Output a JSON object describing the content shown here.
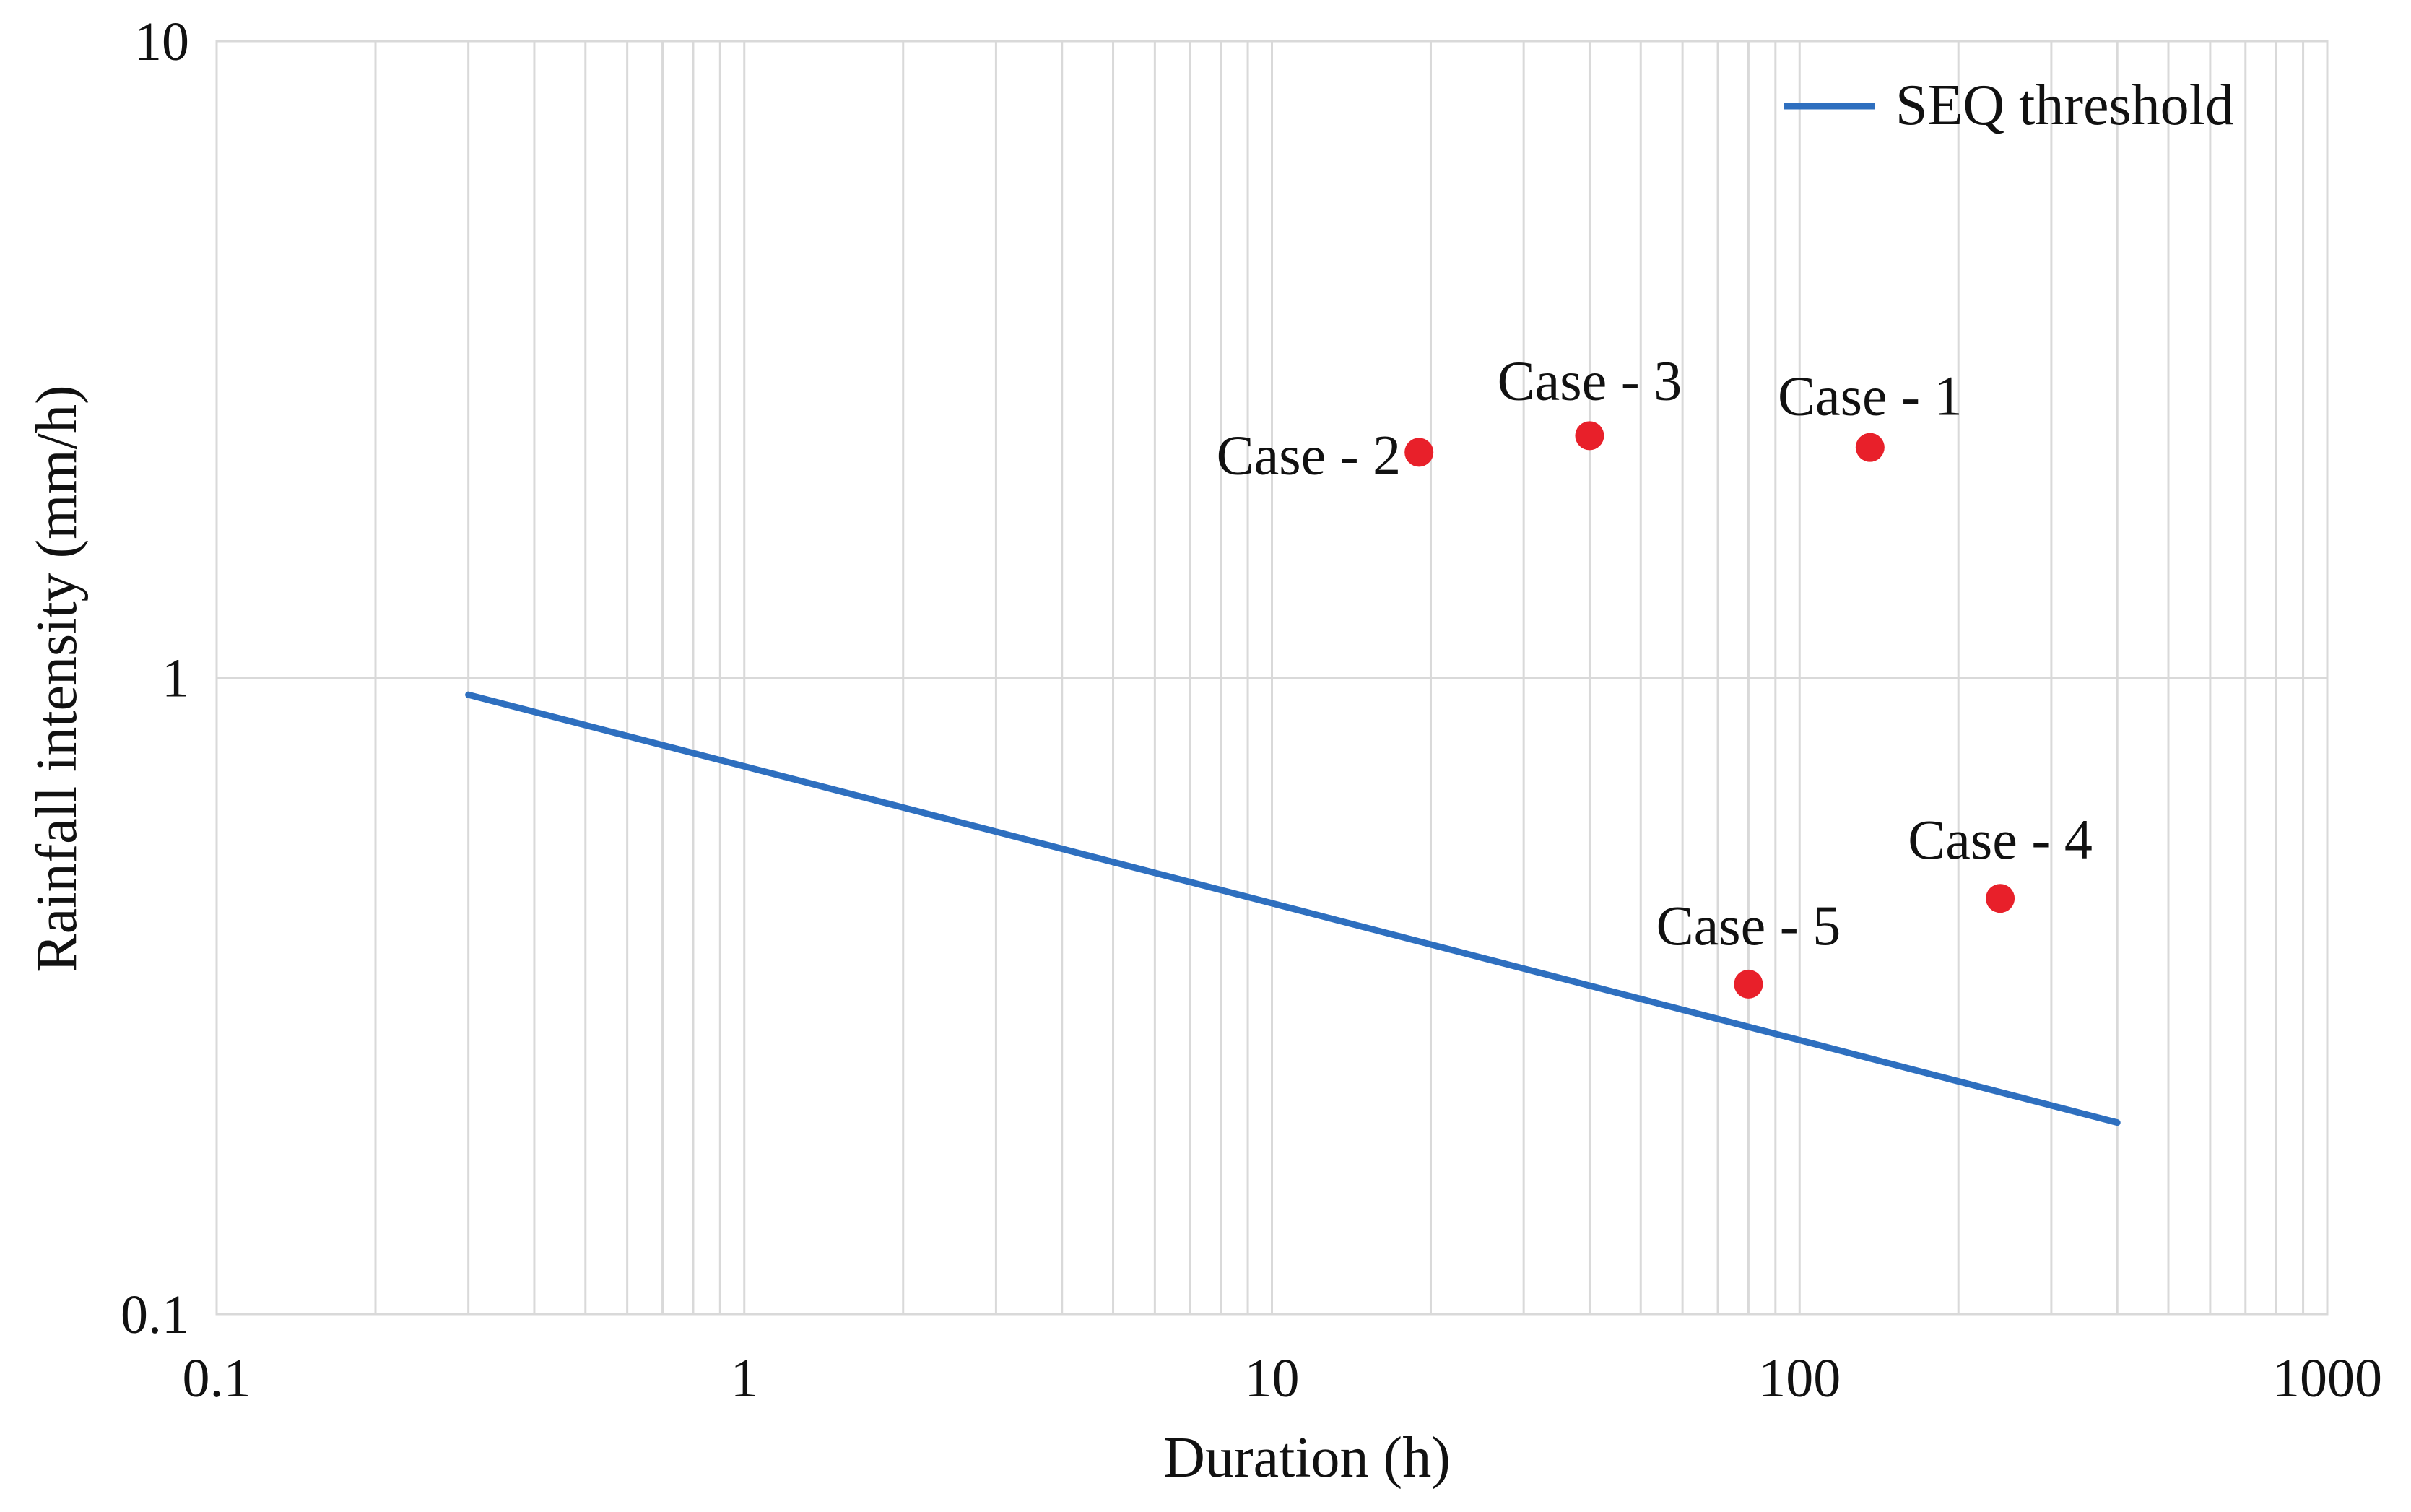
{
  "chart_data": {
    "type": "scatter",
    "x_scale": "log",
    "y_scale": "log",
    "xlabel": "Duration (h)",
    "ylabel": "Rainfall intensity (mm/h)",
    "xlim": [
      0.1,
      1000
    ],
    "ylim": [
      0.1,
      10
    ],
    "x_ticks": [
      0.1,
      1,
      10,
      100,
      1000
    ],
    "x_tick_labels": [
      "0.1",
      "1",
      "10",
      "100",
      "1000"
    ],
    "y_ticks": [
      0.1,
      1,
      10
    ],
    "y_tick_labels": [
      "0.1",
      "1",
      "10"
    ],
    "grid": true,
    "threshold": {
      "name": "SEQ threshold",
      "color": "#2e6fbf",
      "x": [
        0.3,
        400
      ],
      "y": [
        0.94,
        0.2
      ]
    },
    "cases": {
      "color": "#e8202a",
      "points": [
        {
          "label": "Case - 1",
          "x": 136,
          "y": 2.3
        },
        {
          "label": "Case - 2",
          "x": 19,
          "y": 2.26
        },
        {
          "label": "Case - 3",
          "x": 40,
          "y": 2.4
        },
        {
          "label": "Case - 4",
          "x": 240,
          "y": 0.45
        },
        {
          "label": "Case - 5",
          "x": 80,
          "y": 0.33
        }
      ]
    },
    "legend": {
      "position": "top-right",
      "entries": [
        "SEQ threshold"
      ]
    }
  }
}
